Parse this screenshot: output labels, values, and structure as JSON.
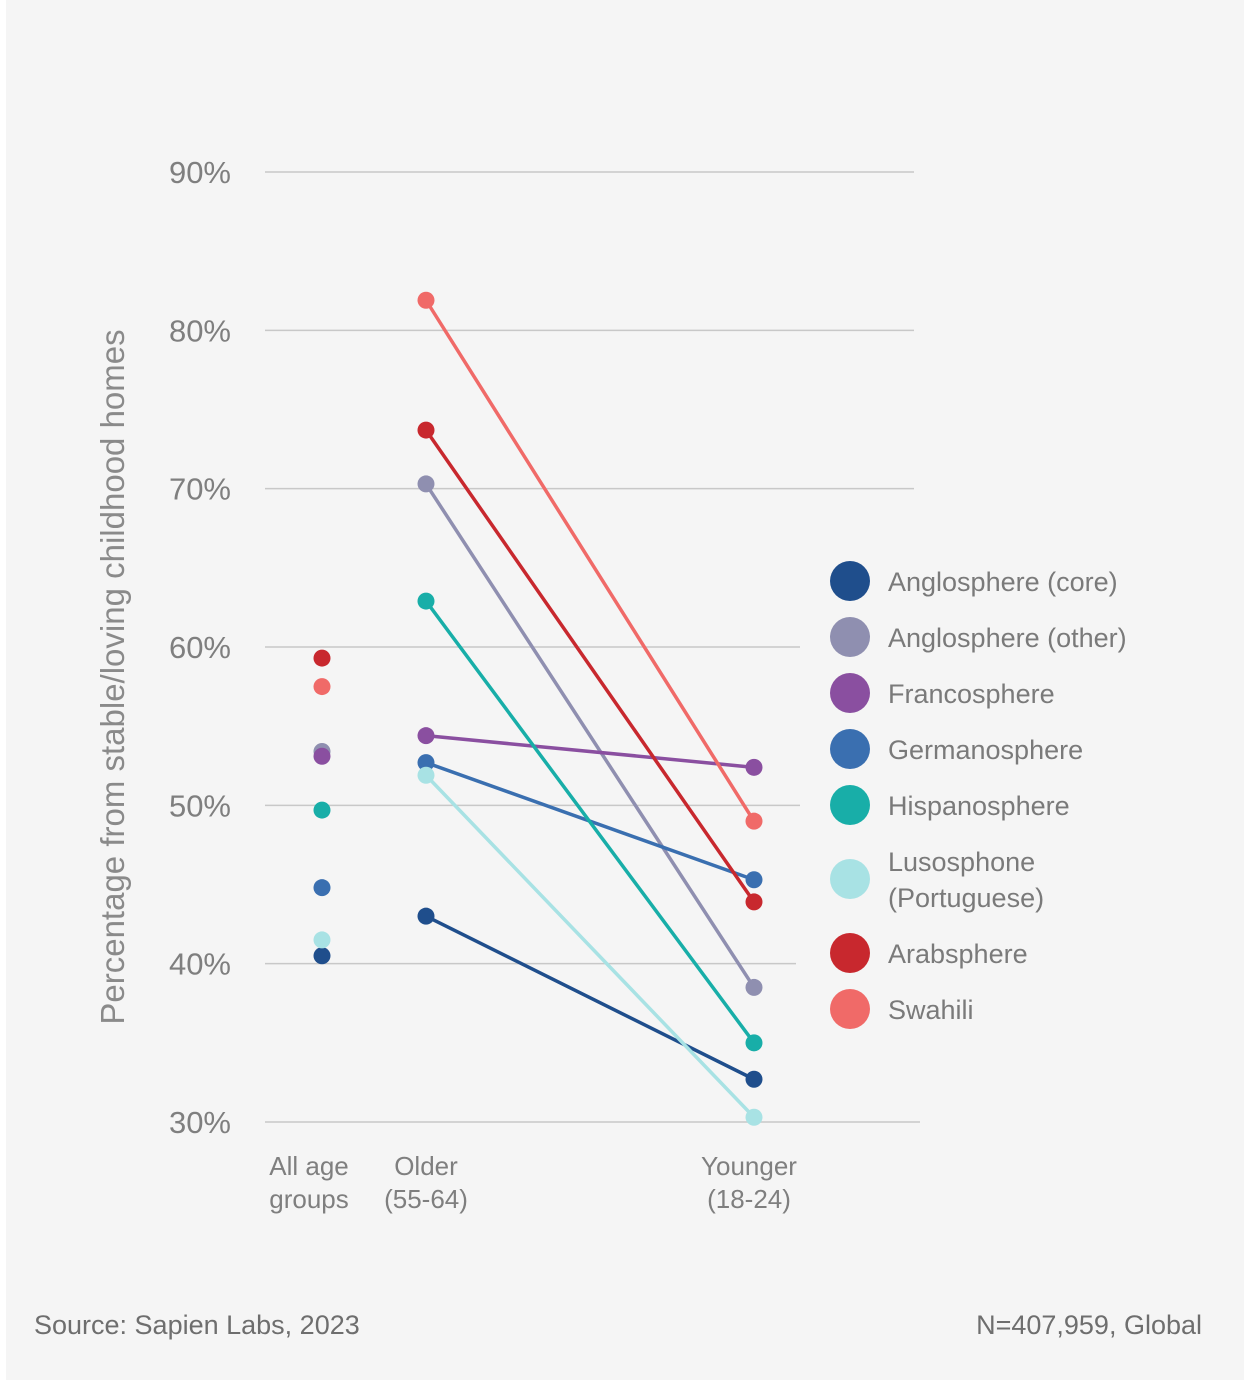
{
  "chart_data": {
    "type": "line",
    "ylabel": "Percentage from stable/loving childhood homes",
    "ylim": [
      30,
      90
    ],
    "y_ticks": [
      30,
      40,
      50,
      60,
      70,
      80,
      90
    ],
    "y_tick_labels": [
      "30%",
      "40%",
      "50%",
      "60%",
      "70%",
      "80%",
      "90%"
    ],
    "categories": [
      {
        "id": "all",
        "lines": [
          "All age",
          "groups"
        ]
      },
      {
        "id": "older",
        "lines": [
          "Older",
          "(55-64)"
        ]
      },
      {
        "id": "younger",
        "lines": [
          "Younger",
          "(18-24)"
        ]
      }
    ],
    "grid": true,
    "legend_position": "right",
    "series": [
      {
        "name": "Anglosphere (core)",
        "color": "#1f4e8c",
        "values": {
          "all": 40.5,
          "older": 43.0,
          "younger": 32.7
        }
      },
      {
        "name": "Anglosphere (other)",
        "color": "#8f8fb0",
        "values": {
          "all": 53.4,
          "older": 70.3,
          "younger": 38.5
        }
      },
      {
        "name": "Francosphere",
        "color": "#8a4fa0",
        "values": {
          "all": 53.1,
          "older": 54.4,
          "younger": 52.4
        }
      },
      {
        "name": "Germanosphere",
        "color": "#3a6fb0",
        "values": {
          "all": 44.8,
          "older": 52.7,
          "younger": 45.3
        }
      },
      {
        "name": "Hispanosphere",
        "color": "#18aea8",
        "values": {
          "all": 49.7,
          "older": 62.9,
          "younger": 35.0
        }
      },
      {
        "name": "Lusosphone (Portuguese)",
        "legend_lines": [
          "Lusosphone",
          "(Portuguese)"
        ],
        "color": "#a8e2e4",
        "values": {
          "all": 41.5,
          "older": 51.9,
          "younger": 30.3
        }
      },
      {
        "name": "Arabsphere",
        "color": "#c8282e",
        "values": {
          "all": 59.3,
          "older": 73.7,
          "younger": 43.9
        }
      },
      {
        "name": "Swahili",
        "color": "#f06a68",
        "values": {
          "all": 57.5,
          "older": 81.9,
          "younger": 49.0
        }
      }
    ]
  },
  "footer": {
    "source": "Source: Sapien Labs, 2023",
    "sample": "N=407,959, Global"
  }
}
